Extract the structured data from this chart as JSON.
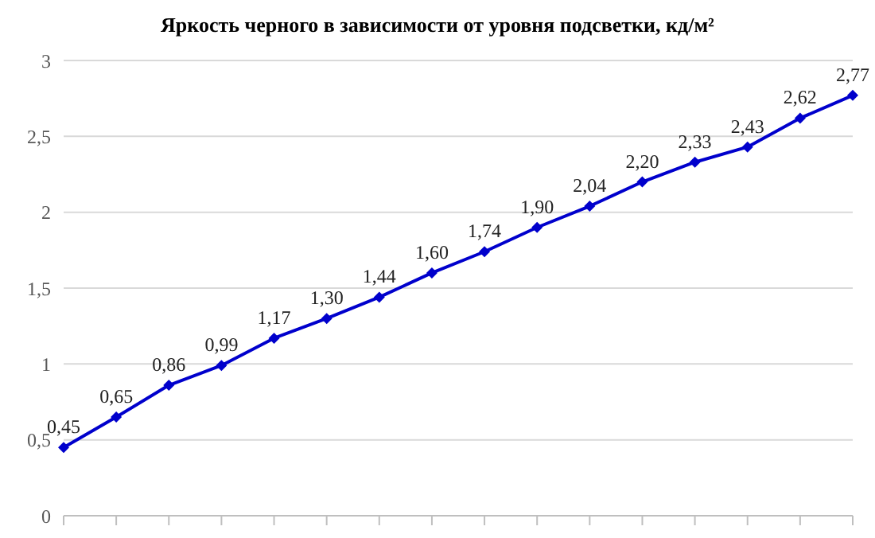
{
  "chart_data": {
    "type": "line",
    "title": "Яркость черного в зависимости от уровня подсветки, кд/м²",
    "categories": [
      null,
      null,
      null,
      null,
      null,
      null,
      null,
      null,
      null,
      null,
      null,
      null,
      null,
      null,
      null,
      null
    ],
    "series": [
      {
        "color": "#0000cc",
        "values": [
          0.45,
          0.65,
          0.86,
          0.99,
          1.17,
          1.3,
          1.44,
          1.6,
          1.74,
          1.9,
          2.04,
          2.2,
          2.33,
          2.43,
          2.62,
          2.77
        ],
        "value_labels": [
          "0,45",
          "0,65",
          "0,86",
          "0,99",
          "1,17",
          "1,30",
          "1,44",
          "1,60",
          "1,74",
          "1,90",
          "2,04",
          "2,20",
          "2,33",
          "2,43",
          "2,62",
          "2,77"
        ]
      }
    ],
    "ylim": [
      0,
      3
    ],
    "yticks": [
      0,
      {
        "value": 0.5,
        "label": "0,5"
      },
      1,
      {
        "value": 1.5,
        "label": "1,5"
      },
      2,
      {
        "value": 2.5,
        "label": "2,5"
      },
      3
    ],
    "grid": "y",
    "marker": "diamond"
  }
}
